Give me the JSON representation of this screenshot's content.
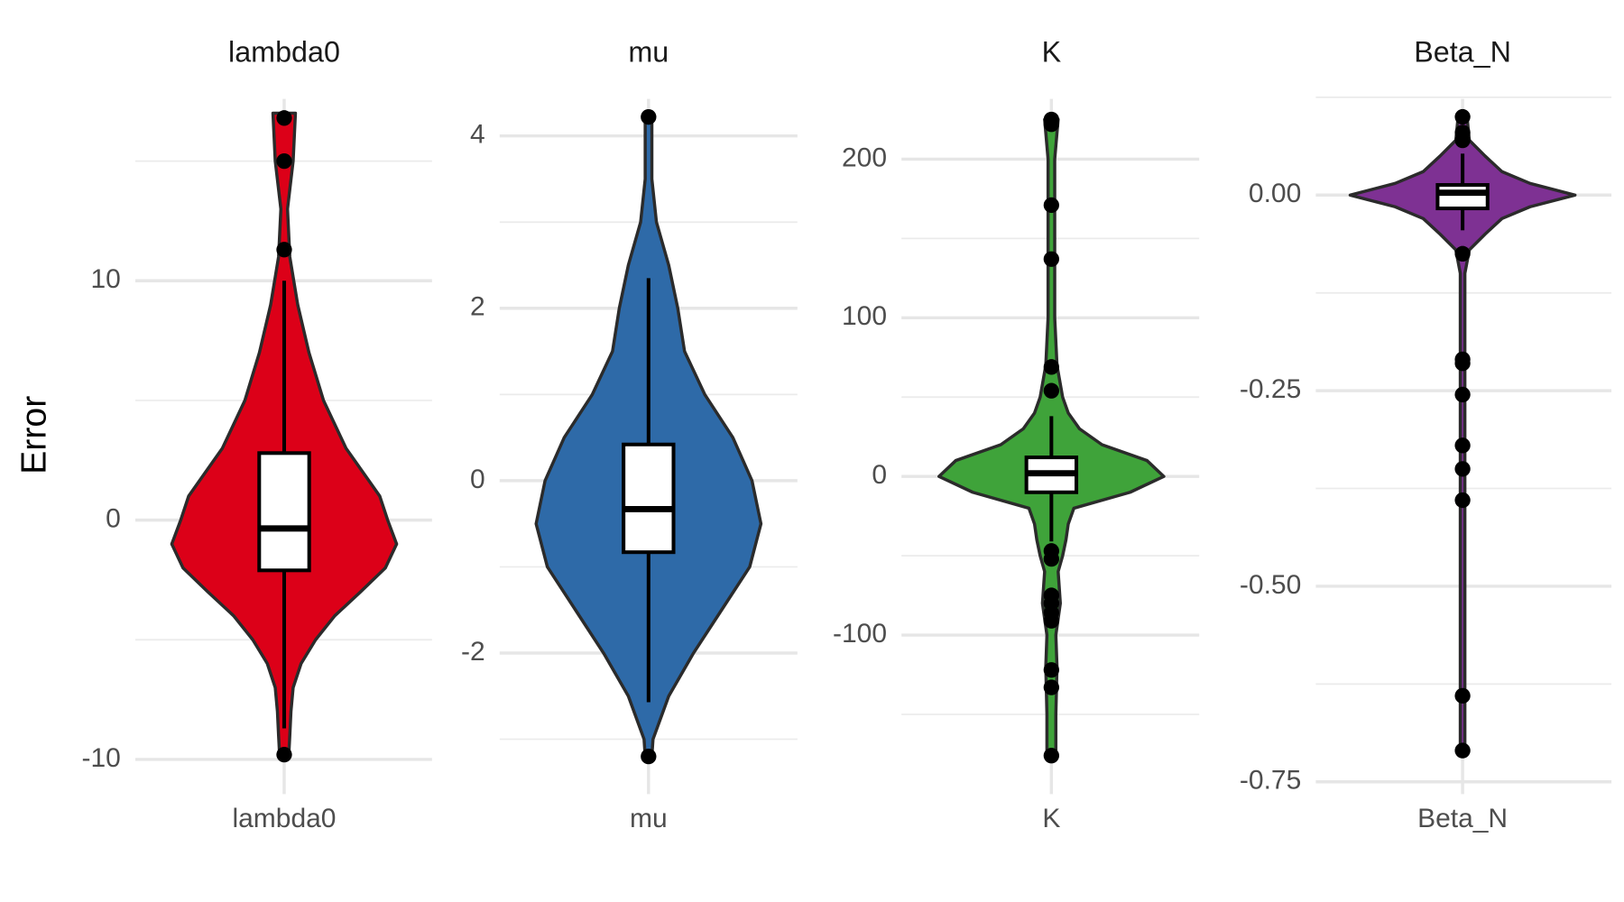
{
  "chart_data": [
    {
      "type": "violin",
      "title": "lambda0",
      "ylabel": "Error",
      "categories": [
        "lambda0"
      ],
      "color": "#dc0018",
      "ylim": [
        -11.1,
        17.6
      ],
      "yticks": [
        -10,
        0,
        10
      ],
      "minor_yticks": [
        -5,
        5,
        15
      ],
      "box": {
        "whisker_low": -8.7,
        "q1": -2.1,
        "median": -0.35,
        "q3": 2.8,
        "whisker_high": 10
      },
      "outliers": [
        16.8,
        15.0,
        11.3,
        -9.8
      ],
      "violin": {
        "y": [
          17,
          15,
          13,
          11,
          9,
          7,
          5,
          3,
          1,
          0,
          -1,
          -2,
          -3,
          -4,
          -5,
          -6,
          -7,
          -8,
          -9,
          -9.9
        ],
        "width": [
          0.1,
          0.08,
          0.03,
          0.05,
          0.12,
          0.22,
          0.35,
          0.55,
          0.85,
          0.92,
          1.0,
          0.9,
          0.68,
          0.45,
          0.28,
          0.15,
          0.08,
          0.06,
          0.05,
          0.04
        ]
      }
    },
    {
      "type": "violin",
      "title": "mu",
      "categories": [
        "mu"
      ],
      "color": "#2e6aa8",
      "ylim": [
        -3.54,
        4.43
      ],
      "yticks": [
        -2,
        0,
        2,
        4
      ],
      "minor_yticks": [
        -3,
        -1,
        1,
        3
      ],
      "box": {
        "whisker_low": -2.57,
        "q1": -0.83,
        "median": -0.33,
        "q3": 0.42,
        "whisker_high": 2.35
      },
      "outliers": [
        4.22,
        -3.2
      ],
      "violin": {
        "y": [
          4.2,
          3.5,
          3,
          2.5,
          2,
          1.5,
          1,
          0.5,
          0,
          -0.5,
          -1,
          -1.5,
          -2,
          -2.5,
          -3,
          -3.2
        ],
        "width": [
          0.03,
          0.03,
          0.07,
          0.18,
          0.26,
          0.32,
          0.5,
          0.75,
          0.92,
          1.0,
          0.9,
          0.65,
          0.4,
          0.18,
          0.04,
          0.03
        ]
      }
    },
    {
      "type": "violin",
      "title": "K",
      "categories": [
        "K"
      ],
      "color": "#3fa33a",
      "ylim": [
        -195,
        238
      ],
      "yticks": [
        -100,
        0,
        100,
        200
      ],
      "minor_yticks": [
        -150,
        -50,
        50,
        150
      ],
      "box": {
        "whisker_low": -41,
        "q1": -10,
        "median": 2,
        "q3": 12,
        "whisker_high": 38
      },
      "outliers": [
        225,
        222,
        171,
        137,
        69,
        54,
        -47,
        -52,
        -75,
        -80,
        -86,
        -91,
        -122,
        -133,
        -176
      ],
      "violin": {
        "y": [
          225,
          200,
          150,
          100,
          70,
          50,
          40,
          30,
          20,
          10,
          0,
          -10,
          -20,
          -30,
          -40,
          -50,
          -60,
          -80,
          -100,
          -120,
          -150,
          -176
        ],
        "width": [
          0.06,
          0.03,
          0.03,
          0.03,
          0.05,
          0.1,
          0.15,
          0.25,
          0.45,
          0.85,
          1.0,
          0.7,
          0.2,
          0.15,
          0.13,
          0.1,
          0.06,
          0.08,
          0.04,
          0.05,
          0.04,
          0.04
        ]
      }
    },
    {
      "type": "violin",
      "title": "Beta_N",
      "categories": [
        "Beta_N"
      ],
      "color": "#7e3193",
      "ylim": [
        -0.755,
        0.123
      ],
      "yticks": [
        {
          "value": -0.75,
          "label": "-0.75"
        },
        {
          "value": -0.5,
          "label": "-0.50"
        },
        {
          "value": -0.25,
          "label": "-0.25"
        },
        {
          "value": 0,
          "label": "0.00"
        }
      ],
      "minor_yticks": [
        -0.625,
        -0.375,
        -0.125,
        0.125
      ],
      "box": {
        "whisker_low": -0.045,
        "q1": -0.017,
        "median": 0.003,
        "q3": 0.013,
        "whisker_high": 0.053
      },
      "outliers": [
        0.1,
        0.08,
        0.07,
        -0.075,
        -0.21,
        -0.215,
        -0.255,
        -0.32,
        -0.35,
        -0.39,
        -0.64,
        -0.71
      ],
      "violin": {
        "y": [
          0.1,
          0.07,
          0.05,
          0.03,
          0.015,
          0,
          -0.015,
          -0.03,
          -0.05,
          -0.07,
          -0.1,
          -0.2,
          -0.4,
          -0.71
        ],
        "width": [
          0.04,
          0.06,
          0.2,
          0.35,
          0.6,
          1.0,
          0.6,
          0.35,
          0.2,
          0.06,
          0.02,
          0.02,
          0.02,
          0.02
        ]
      }
    }
  ]
}
